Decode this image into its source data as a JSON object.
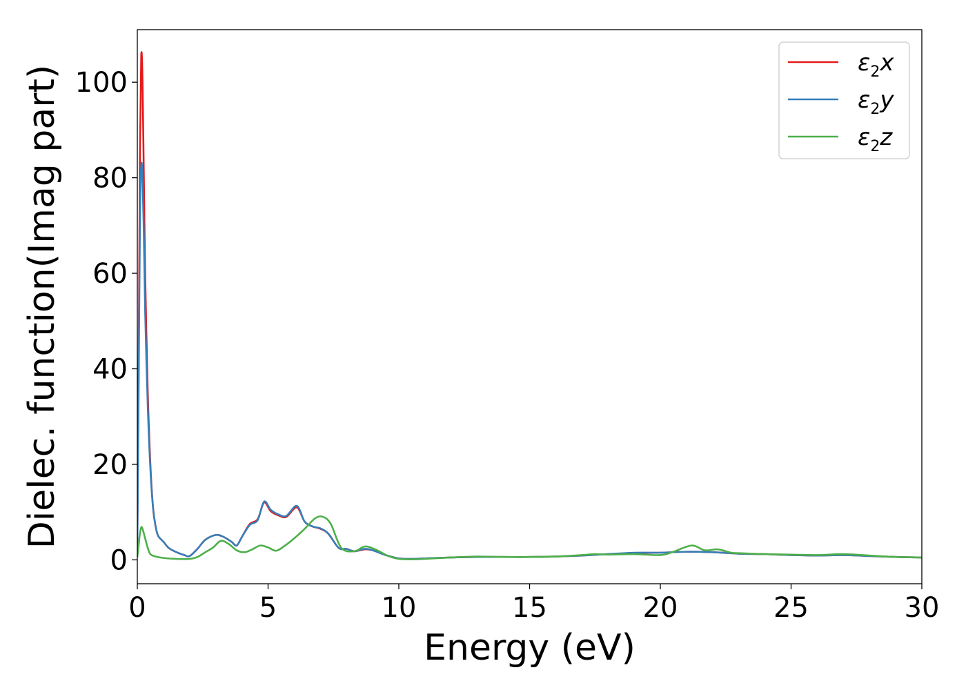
{
  "chart_data": {
    "type": "line",
    "title": "",
    "xlabel": "Energy (eV)",
    "ylabel": "Dielec. function(Imag part)",
    "xlim": [
      0,
      30
    ],
    "ylim": [
      -5,
      111
    ],
    "xticks": [
      "0",
      "5",
      "10",
      "15",
      "20",
      "25",
      "30"
    ],
    "yticks": [
      "0",
      "20",
      "40",
      "60",
      "80",
      "100"
    ],
    "grid": false,
    "legend_position": "top-right",
    "series": [
      {
        "name": "ε2x",
        "color": "#e41a1c",
        "x": [
          0,
          0.05,
          0.1,
          0.15,
          0.2,
          0.25,
          0.3,
          0.4,
          0.5,
          0.6,
          0.7,
          0.8,
          1.0,
          1.2,
          1.5,
          1.8,
          2.0,
          2.3,
          2.6,
          3.0,
          3.3,
          3.6,
          3.8,
          4.0,
          4.3,
          4.6,
          4.85,
          5.1,
          5.4,
          5.7,
          6.1,
          6.4,
          6.7,
          7.0,
          7.3,
          7.7,
          8.0,
          8.3,
          8.7,
          9.0,
          9.5,
          10.0,
          10.5,
          11.0,
          12.0,
          13.0,
          14.0,
          15.0,
          16.0,
          17.0,
          18.0,
          19.0,
          20.0,
          21.0,
          22.0,
          23.0,
          24.0,
          25.0,
          26.0,
          27.0,
          28.0,
          29.0,
          30.0
        ],
        "values": [
          2,
          40,
          85,
          105.5,
          100,
          80,
          60,
          35,
          20,
          11,
          7,
          5,
          3.8,
          2.5,
          1.6,
          1.0,
          0.8,
          2.3,
          4.2,
          5.2,
          4.8,
          3.8,
          3.0,
          4.8,
          7.5,
          8.5,
          12.0,
          10.2,
          9.3,
          9.0,
          11.0,
          8.0,
          7.0,
          6.5,
          5.5,
          2.5,
          2.3,
          1.8,
          2.2,
          2.0,
          1.0,
          0.3,
          0.2,
          0.3,
          0.5,
          0.6,
          0.6,
          0.6,
          0.7,
          0.9,
          1.2,
          1.4,
          1.5,
          1.7,
          1.6,
          1.3,
          1.2,
          1.0,
          0.9,
          1.0,
          0.8,
          0.6,
          0.5
        ]
      },
      {
        "name": "ε2y",
        "color": "#377eb8",
        "x": [
          0,
          0.05,
          0.1,
          0.15,
          0.2,
          0.25,
          0.3,
          0.4,
          0.5,
          0.6,
          0.7,
          0.8,
          1.0,
          1.2,
          1.5,
          1.8,
          2.0,
          2.3,
          2.6,
          3.0,
          3.3,
          3.6,
          3.8,
          4.0,
          4.3,
          4.6,
          4.85,
          5.1,
          5.4,
          5.7,
          6.1,
          6.4,
          6.7,
          7.0,
          7.3,
          7.7,
          8.0,
          8.3,
          8.7,
          9.0,
          9.5,
          10.0,
          10.5,
          11.0,
          12.0,
          13.0,
          14.0,
          15.0,
          16.0,
          17.0,
          18.0,
          19.0,
          20.0,
          21.0,
          22.0,
          23.0,
          24.0,
          25.0,
          26.0,
          27.0,
          28.0,
          29.0,
          30.0
        ],
        "values": [
          2,
          35,
          70,
          82.5,
          80,
          68,
          52,
          32,
          19,
          11,
          7,
          5,
          3.8,
          2.5,
          1.6,
          1.0,
          0.8,
          2.3,
          4.2,
          5.2,
          4.8,
          3.8,
          3.0,
          4.8,
          7.3,
          8.3,
          12.2,
          10.5,
          9.5,
          9.2,
          11.3,
          8.0,
          7.0,
          6.6,
          5.5,
          2.5,
          2.3,
          1.8,
          2.3,
          2.0,
          1.0,
          0.3,
          0.2,
          0.3,
          0.5,
          0.6,
          0.6,
          0.6,
          0.7,
          0.9,
          1.2,
          1.5,
          1.5,
          1.7,
          1.6,
          1.3,
          1.2,
          1.0,
          0.9,
          1.0,
          0.8,
          0.6,
          0.5
        ]
      },
      {
        "name": "ε2z",
        "color": "#4daf4a",
        "x": [
          0,
          0.05,
          0.1,
          0.15,
          0.2,
          0.3,
          0.4,
          0.5,
          0.7,
          1.0,
          1.5,
          2.0,
          2.3,
          2.6,
          2.9,
          3.2,
          3.5,
          3.8,
          4.1,
          4.4,
          4.7,
          5.0,
          5.3,
          5.6,
          6.0,
          6.4,
          6.8,
          7.1,
          7.4,
          7.8,
          8.3,
          8.7,
          9.1,
          9.6,
          10.0,
          10.5,
          11.0,
          12.0,
          13.0,
          14.0,
          15.0,
          16.0,
          17.0,
          17.5,
          18.0,
          19.0,
          20.0,
          20.5,
          21.2,
          21.7,
          22.2,
          22.7,
          23.0,
          24.0,
          25.0,
          26.0,
          27.0,
          28.0,
          29.0,
          30.0
        ],
        "values": [
          0.5,
          3,
          5.5,
          6.8,
          6.5,
          4.5,
          2.5,
          1.2,
          0.7,
          0.4,
          0.2,
          0.2,
          0.6,
          1.6,
          2.6,
          4.0,
          3.3,
          2.0,
          1.6,
          2.2,
          3.0,
          2.6,
          1.9,
          2.8,
          4.5,
          6.5,
          8.7,
          9.0,
          7.5,
          2.5,
          1.8,
          2.8,
          2.2,
          0.8,
          0.2,
          0.1,
          0.2,
          0.5,
          0.7,
          0.6,
          0.6,
          0.7,
          1.0,
          1.2,
          1.1,
          1.2,
          1.0,
          1.7,
          3.0,
          2.0,
          2.2,
          1.5,
          1.4,
          1.2,
          1.1,
          1.0,
          1.2,
          0.9,
          0.6,
          0.5
        ]
      }
    ]
  }
}
